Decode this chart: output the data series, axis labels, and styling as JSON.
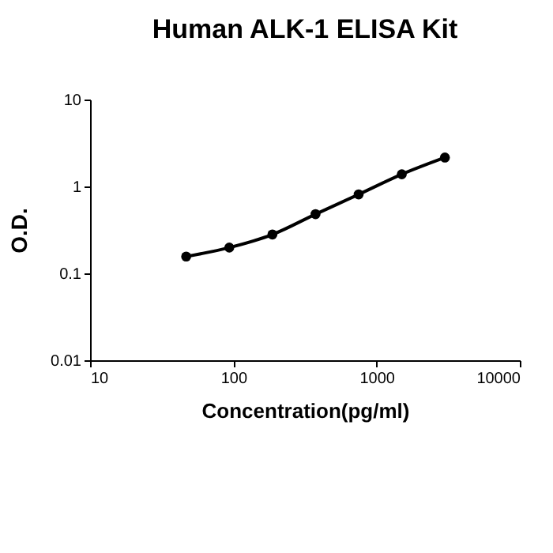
{
  "chart_data": {
    "type": "line",
    "title": "Human ALK-1 ELISA Kit",
    "xlabel": "Concentration(pg/ml)",
    "ylabel": "O.D.",
    "x": [
      46.875,
      93.75,
      187.5,
      375,
      750,
      1500,
      3000
    ],
    "series": [
      {
        "color": "#000000",
        "values": [
          0.156,
          0.198,
          0.28,
          0.48,
          0.81,
          1.38,
          2.15
        ]
      }
    ],
    "log": "xy",
    "xlim": [
      10,
      10000
    ],
    "xticks": [
      10,
      100,
      1000,
      10000
    ],
    "ylim": [
      0.01,
      10
    ],
    "yticks": [
      0.01,
      0.1,
      1,
      10
    ],
    "grid": false,
    "legend": false,
    "marker": "circle",
    "line_style": "solid"
  }
}
